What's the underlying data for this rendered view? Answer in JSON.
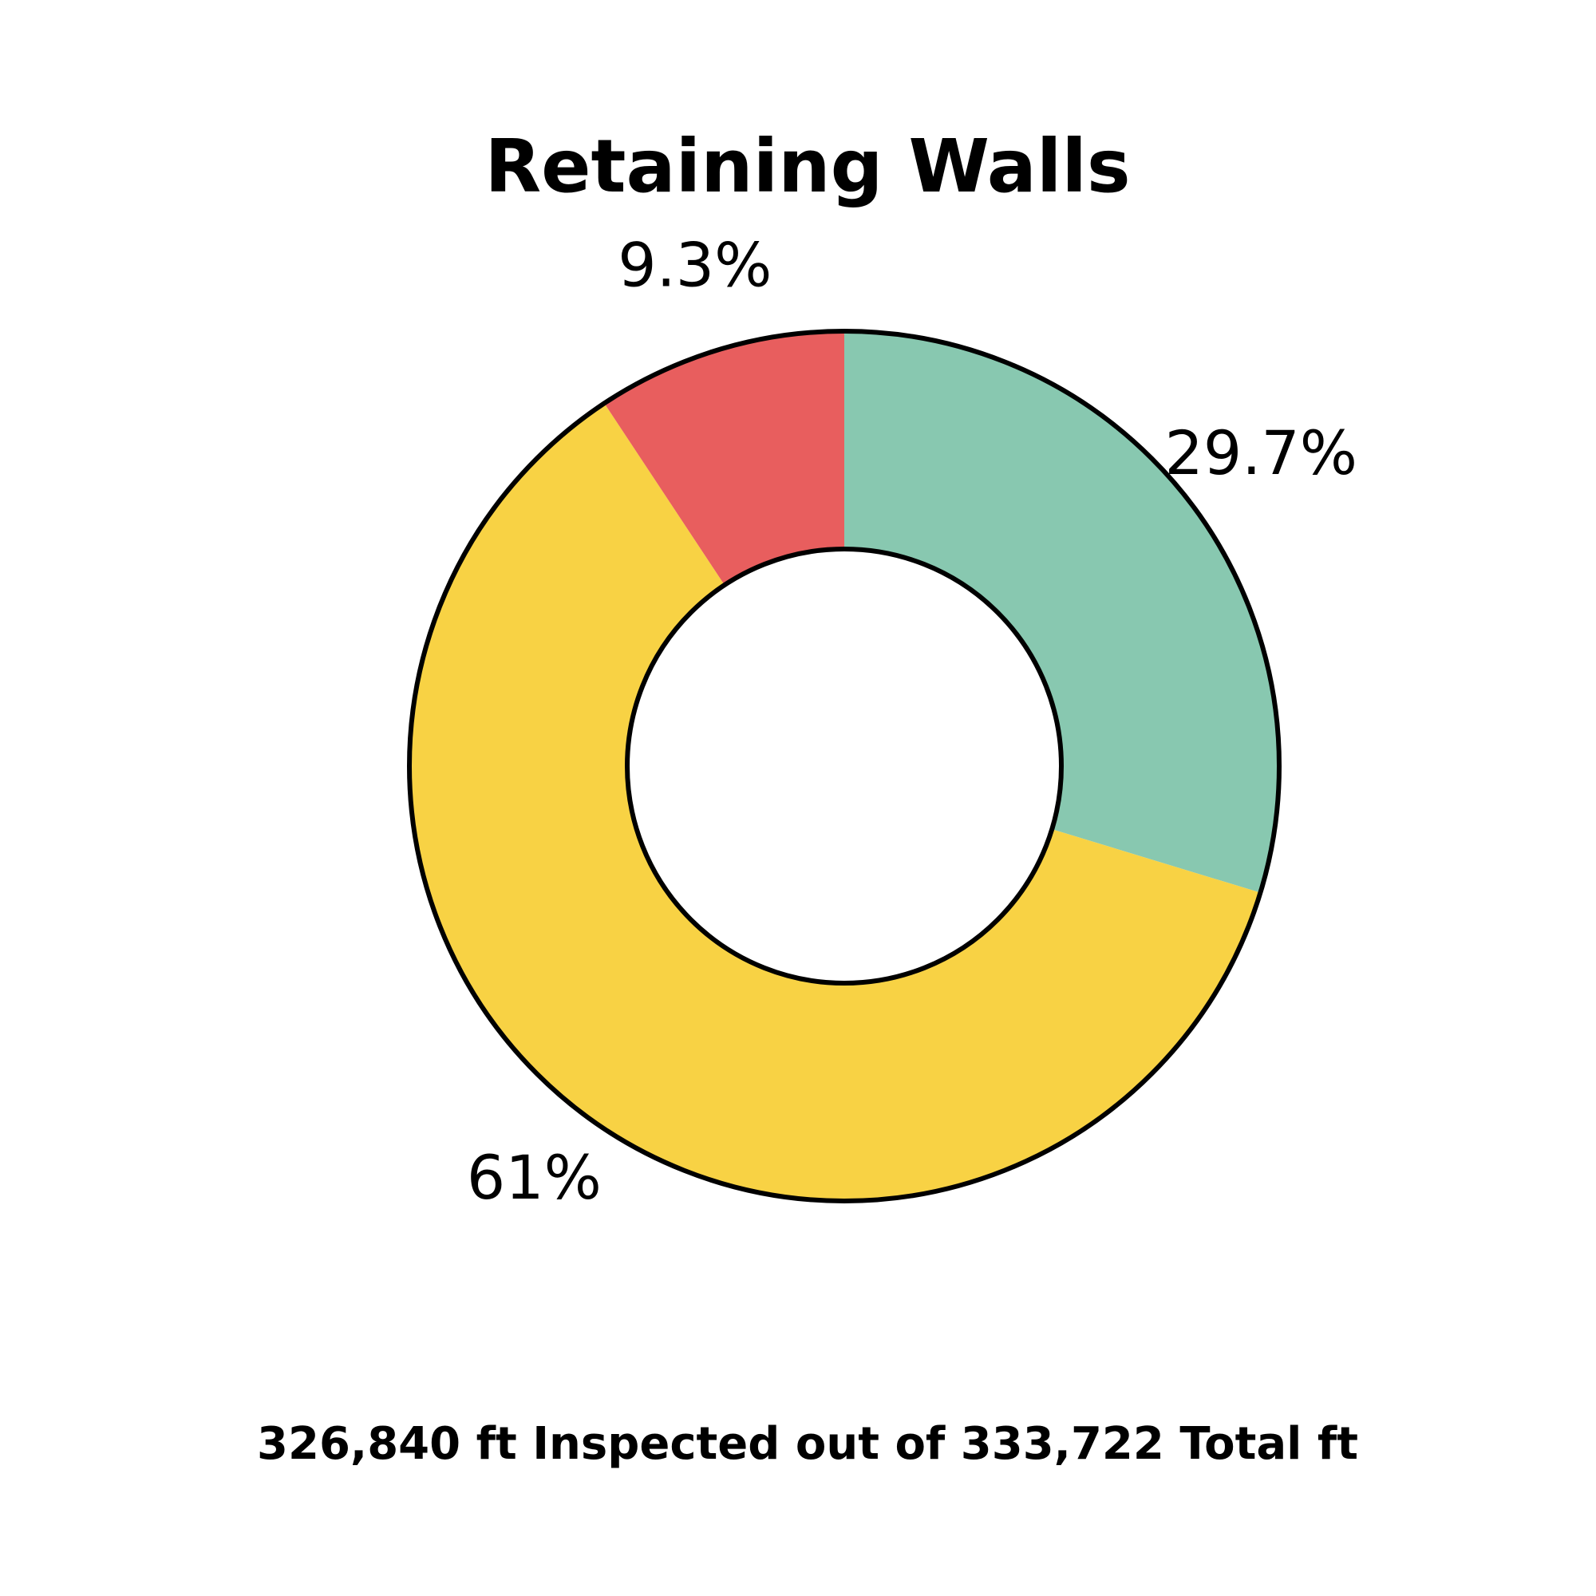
{
  "chart_data": {
    "type": "pie",
    "title": "Retaining Walls",
    "subtitle": "326,840 ft Inspected out of 333,722 Total ft",
    "slices": [
      {
        "label": "29.7%",
        "value": 29.7,
        "color": "#88C8B0"
      },
      {
        "label": "61%",
        "value": 61,
        "color": "#F8D244"
      },
      {
        "label": "9.3%",
        "value": 9.3,
        "color": "#E85E5E"
      }
    ],
    "donut": true,
    "stroke_color": "#000000",
    "legend": "none"
  }
}
